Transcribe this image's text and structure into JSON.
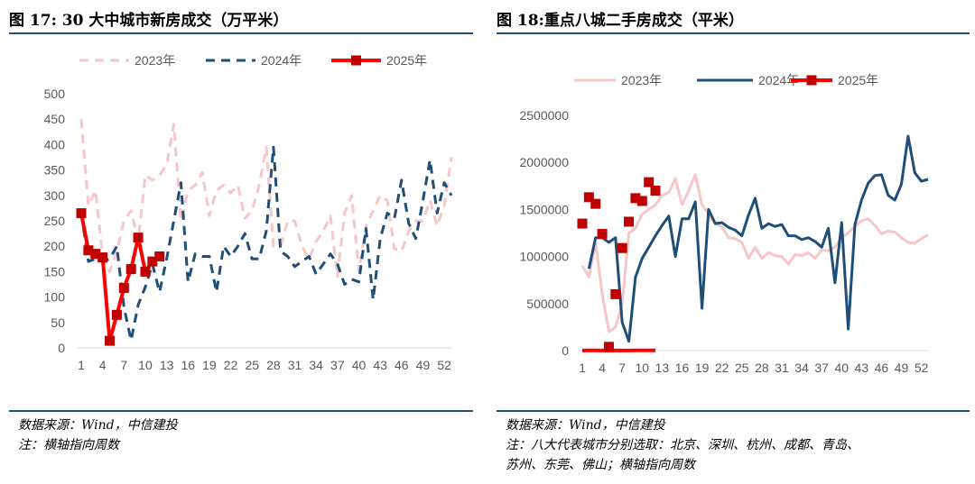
{
  "left": {
    "title": "图 17: 30 大中城市新房成交（万平米）",
    "source": "数据来源：Wind，中信建投",
    "note": "注：横轴指向周数"
  },
  "right": {
    "title": "图 18:重点八城二手房成交（平米）",
    "source": "数据来源：Wind，中信建投",
    "note": "注：八大代表城市分别选取：北京、深圳、杭州、成都、青岛、",
    "note2": "苏州、东莞、佛山；横轴指向周数"
  },
  "colors": {
    "s2023": "#f7c6c7",
    "s2024": "#1f4e79",
    "s2025": "#ff0000",
    "marker2025": "#c00000",
    "rule": "#1f4e79"
  },
  "chart_data": [
    {
      "type": "line",
      "ylim": [
        0,
        500
      ],
      "yticks": [
        "0",
        "50",
        "100",
        "150",
        "200",
        "250",
        "300",
        "350",
        "400",
        "450",
        "500"
      ],
      "xticks": [
        "1",
        "4",
        "7",
        "10",
        "13",
        "16",
        "19",
        "22",
        "25",
        "28",
        "31",
        "34",
        "37",
        "40",
        "43",
        "46",
        "49",
        "52"
      ],
      "xlim": [
        1,
        53
      ],
      "legend_position": "top",
      "series": [
        {
          "name": "2023年",
          "style": "dashed",
          "values": [
            450,
            280,
            310,
            180,
            150,
            190,
            250,
            270,
            210,
            340,
            330,
            340,
            360,
            440,
            250,
            310,
            320,
            345,
            260,
            310,
            320,
            305,
            320,
            255,
            270,
            320,
            395,
            200,
            200,
            250,
            250,
            200,
            175,
            210,
            230,
            260,
            140,
            265,
            300,
            150,
            240,
            270,
            300,
            290,
            195,
            190,
            230,
            250,
            250,
            290,
            240,
            280,
            375
          ]
        },
        {
          "name": "2024年",
          "style": "dashed",
          "values": [
            265,
            170,
            175,
            170,
            175,
            200,
            80,
            15,
            85,
            120,
            165,
            110,
            175,
            250,
            325,
            130,
            185,
            180,
            180,
            110,
            200,
            180,
            200,
            225,
            175,
            175,
            230,
            395,
            190,
            180,
            160,
            170,
            180,
            145,
            165,
            185,
            165,
            125,
            135,
            130,
            235,
            95,
            215,
            265,
            255,
            330,
            245,
            215,
            290,
            370,
            265,
            325,
            300
          ]
        },
        {
          "name": "2025年",
          "style": "solid-marker",
          "values": [
            265,
            192,
            185,
            178,
            14,
            65,
            118,
            155,
            217,
            150,
            170,
            180
          ]
        }
      ]
    },
    {
      "type": "line",
      "ylim": [
        0,
        2500000
      ],
      "yticks": [
        "0",
        "500000",
        "1000000",
        "1500000",
        "2000000",
        "2500000"
      ],
      "xticks": [
        "1",
        "4",
        "7",
        "10",
        "13",
        "16",
        "19",
        "22",
        "25",
        "28",
        "31",
        "34",
        "37",
        "40",
        "43",
        "46",
        "49",
        "52"
      ],
      "xlim": [
        1,
        53
      ],
      "legend_position": "top",
      "series": [
        {
          "name": "2023年",
          "style": "solid",
          "values": [
            900,
            780,
            1150,
            600,
            200,
            250,
            500,
            1250,
            1300,
            1450,
            1500,
            1550,
            1650,
            1680,
            1830,
            1550,
            1700,
            1870,
            1550,
            1450,
            1350,
            1310,
            1200,
            1190,
            1150,
            980,
            1100,
            980,
            1040,
            1010,
            1000,
            920,
            1020,
            1010,
            1040,
            980,
            1070,
            1060,
            1100,
            1200,
            1250,
            1320,
            1380,
            1400,
            1330,
            1240,
            1270,
            1260,
            1200,
            1150,
            1140,
            1190,
            1230
          ]
        },
        {
          "name": "2024年",
          "style": "solid",
          "values": [
            null,
            870,
            1200,
            1200,
            1150,
            1200,
            300,
            100,
            780,
            980,
            1100,
            1220,
            1330,
            1430,
            1000,
            1400,
            1400,
            1580,
            450,
            1500,
            1350,
            1360,
            1310,
            1280,
            1220,
            1440,
            1620,
            1300,
            1350,
            1320,
            1340,
            1220,
            1220,
            1180,
            1200,
            1160,
            1100,
            1300,
            720,
            1360,
            230,
            1340,
            1600,
            1780,
            1860,
            1870,
            1650,
            1600,
            1770,
            2280,
            1890,
            1800,
            1820
          ]
        },
        {
          "name": "2025年",
          "style": "solid-marker",
          "values": [
            1350,
            1630,
            1560,
            1240,
            40,
            600,
            1090,
            1370,
            1620,
            1590,
            1790,
            1700
          ]
        }
      ]
    }
  ]
}
